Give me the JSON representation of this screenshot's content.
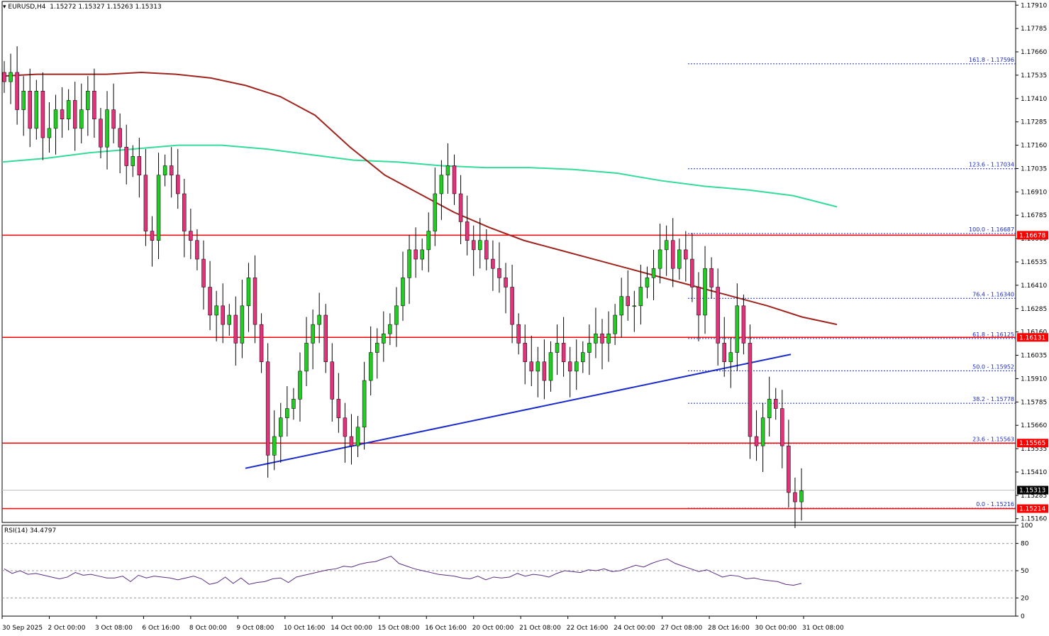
{
  "header": {
    "symbol": "EURUSD,H4",
    "ohlc": "1.15272 1.15327 1.15263 1.15313"
  },
  "rsi_header": "RSI(14) 34.4797",
  "colors": {
    "bull": "#22cc22",
    "bear": "#e0337a",
    "ma_fast": "#a0241e",
    "ma_slow": "#33dd99",
    "trendline": "#1a2bcc",
    "hline": "#ff0000",
    "fib": "#1a2bcc",
    "rsi": "#5a2d82"
  },
  "chart_data": [
    {
      "type": "candlestick",
      "title": "EURUSD,H4",
      "ylim": [
        1.1514,
        1.1793
      ],
      "y_ticks": [
        "1.17910",
        "1.17785",
        "1.17660",
        "1.17535",
        "1.17410",
        "1.17285",
        "1.17160",
        "1.17035",
        "1.16910",
        "1.16785",
        "1.16660",
        "1.16535",
        "1.16410",
        "1.16285",
        "1.16160",
        "1.16035",
        "1.15910",
        "1.15785",
        "1.15660",
        "1.15535",
        "1.15410",
        "1.15285",
        "1.15160"
      ],
      "x_ticks": [
        "30 Sep 2025",
        "2 Oct 00:00",
        "3 Oct 08:00",
        "6 Oct 16:00",
        "8 Oct 00:00",
        "9 Oct 08:00",
        "10 Oct 16:00",
        "14 Oct 00:00",
        "15 Oct 08:00",
        "16 Oct 16:00",
        "20 Oct 00:00",
        "21 Oct 08:00",
        "22 Oct 16:00",
        "24 Oct 00:00",
        "27 Oct 08:00",
        "28 Oct 16:00",
        "30 Oct 00:00",
        "31 Oct 08:00"
      ],
      "close_path": [
        1.175,
        1.1755,
        1.1735,
        1.1745,
        1.1725,
        1.1745,
        1.172,
        1.1725,
        1.1735,
        1.173,
        1.174,
        1.1725,
        1.1735,
        1.1745,
        1.173,
        1.1715,
        1.1735,
        1.1725,
        1.1715,
        1.1705,
        1.171,
        1.17,
        1.167,
        1.1665,
        1.17,
        1.1705,
        1.17,
        1.169,
        1.167,
        1.1665,
        1.1655,
        1.164,
        1.1625,
        1.163,
        1.162,
        1.1625,
        1.161,
        1.163,
        1.1645,
        1.162,
        1.16,
        1.155,
        1.156,
        1.157,
        1.1575,
        1.158,
        1.1595,
        1.161,
        1.162,
        1.1625,
        1.16,
        1.158,
        1.157,
        1.156,
        1.1555,
        1.1565,
        1.159,
        1.1605,
        1.161,
        1.1615,
        1.162,
        1.163,
        1.1645,
        1.166,
        1.1655,
        1.166,
        1.167,
        1.169,
        1.17,
        1.1705,
        1.169,
        1.1675,
        1.1665,
        1.166,
        1.1665,
        1.1655,
        1.165,
        1.1645,
        1.164,
        1.162,
        1.161,
        1.16,
        1.1595,
        1.16,
        1.159,
        1.1605,
        1.161,
        1.16,
        1.1595,
        1.16,
        1.1605,
        1.161,
        1.1615,
        1.161,
        1.1615,
        1.1625,
        1.1635,
        1.163,
        1.163,
        1.164,
        1.1645,
        1.165,
        1.166,
        1.1665,
        1.165,
        1.166,
        1.1655,
        1.164,
        1.1625,
        1.165,
        1.164,
        1.161,
        1.16,
        1.1605,
        1.163,
        1.161,
        1.156,
        1.1555,
        1.157,
        1.158,
        1.1575,
        1.1555,
        1.153,
        1.1525,
        1.1531
      ],
      "current_price": "1.15313",
      "ma_fast": [
        1.1753,
        1.1754,
        1.1754,
        1.1754,
        1.1755,
        1.1754,
        1.1752,
        1.1748,
        1.1742,
        1.1732,
        1.1715,
        1.17,
        1.169,
        1.168,
        1.1672,
        1.1665,
        1.166,
        1.1655,
        1.165,
        1.1645,
        1.164,
        1.1635,
        1.163,
        1.1624,
        1.162
      ],
      "ma_slow": [
        1.1707,
        1.1709,
        1.1712,
        1.1714,
        1.1716,
        1.1716,
        1.1714,
        1.1711,
        1.1708,
        1.1707,
        1.1705,
        1.1704,
        1.1704,
        1.1703,
        1.1701,
        1.1697,
        1.1694,
        1.1692,
        1.1689,
        1.1683
      ],
      "horizontal_levels": [
        {
          "price": 1.16678,
          "label": "1.16678"
        },
        {
          "price": 1.16131,
          "label": "1.16131"
        },
        {
          "price": 1.15565,
          "label": "1.15565"
        },
        {
          "price": 1.15214,
          "label": "1.15214"
        }
      ],
      "fibonacci": [
        {
          "level": "161.8",
          "price": 1.17596,
          "label": "161.8 - 1.17596"
        },
        {
          "level": "123.6",
          "price": 1.17034,
          "label": "123.6 - 1.17034"
        },
        {
          "level": "100.0",
          "price": 1.16687,
          "label": "100.0 - 1.16687"
        },
        {
          "level": "76.4",
          "price": 1.1634,
          "label": "76.4 - 1.16340"
        },
        {
          "level": "61.8",
          "price": 1.16125,
          "label": "61.8 - 1.16125"
        },
        {
          "level": "50.0",
          "price": 1.15952,
          "label": "50.0 - 1.15952"
        },
        {
          "level": "38.2",
          "price": 1.15778,
          "label": "38.2 - 1.15778"
        },
        {
          "level": "23.6",
          "price": 1.15563,
          "label": "23.6 - 1.15563"
        },
        {
          "level": "0.0",
          "price": 1.15216,
          "label": "0.0 - 1.15216"
        }
      ],
      "trendline": {
        "start_price": 1.1543,
        "end_price": 1.1604
      }
    },
    {
      "type": "line",
      "title": "RSI(14) 34.4797",
      "ylim": [
        0,
        100
      ],
      "y_ticks": [
        "100",
        "80",
        "50",
        "20",
        "0"
      ],
      "levels": [
        80,
        50,
        20
      ],
      "values": [
        52,
        47,
        50,
        46,
        47,
        45,
        43,
        41,
        43,
        48,
        45,
        46,
        44,
        42,
        42,
        44,
        38,
        45,
        42,
        44,
        43,
        42,
        40,
        42,
        44,
        41,
        35,
        37,
        43,
        36,
        42,
        35,
        37,
        38,
        41,
        42,
        37,
        43,
        45,
        47,
        49,
        51,
        52,
        55,
        54,
        57,
        59,
        60,
        63,
        66,
        58,
        55,
        52,
        50,
        48,
        46,
        45,
        44,
        42,
        41,
        44,
        40,
        43,
        42,
        43,
        47,
        44,
        46,
        45,
        43,
        47,
        50,
        49,
        48,
        51,
        50,
        52,
        49,
        50,
        53,
        56,
        54,
        58,
        61,
        63,
        58,
        55,
        52,
        49,
        51,
        47,
        43,
        45,
        44,
        41,
        42,
        40,
        39,
        38,
        35,
        34,
        36
      ]
    }
  ]
}
